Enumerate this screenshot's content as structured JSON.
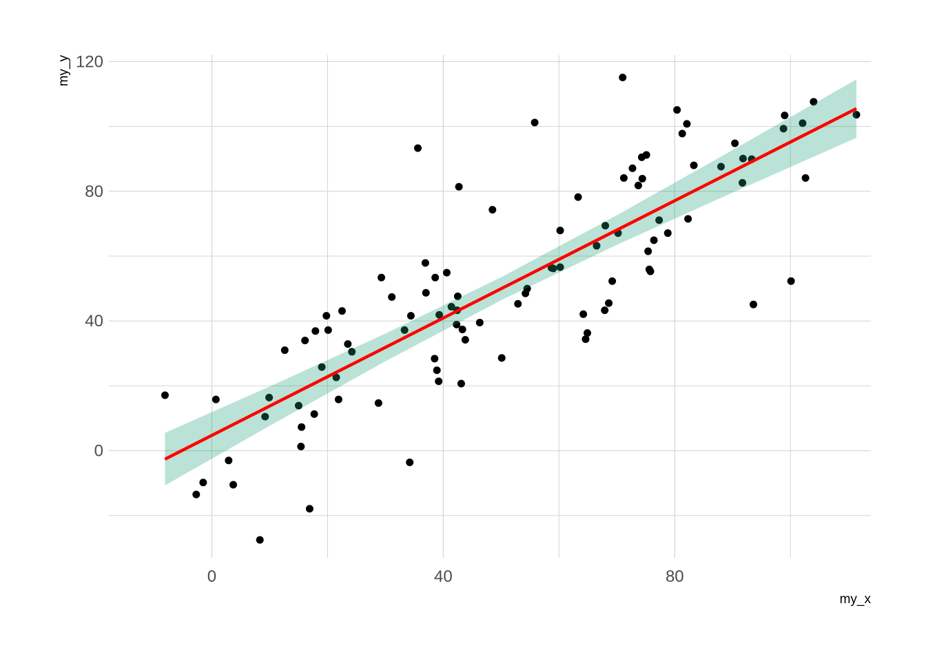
{
  "chart_data": {
    "type": "scatter",
    "title": "",
    "xlabel": "my_x",
    "ylabel": "my_y",
    "xlim": [
      -17.8,
      113.9
    ],
    "ylim": [
      -33,
      122
    ],
    "x_ticks": [
      0,
      40,
      80
    ],
    "y_ticks": [
      0,
      40,
      80,
      120
    ],
    "x_minor_grid": [
      20,
      60,
      100
    ],
    "y_minor_grid": [
      -20,
      20,
      60,
      100
    ],
    "grid": true,
    "colors": {
      "points": "#000000",
      "fit_line": "#ff0000",
      "band": "#1b9e77",
      "grid": "#d4d4d4",
      "tick_text": "#4d4d4d"
    },
    "points": [
      [
        -8.1,
        17.1
      ],
      [
        -2.7,
        -13.5
      ],
      [
        -1.5,
        -9.8
      ],
      [
        0.7,
        15.8
      ],
      [
        2.9,
        -3.0
      ],
      [
        3.7,
        -10.5
      ],
      [
        8.3,
        -27.5
      ],
      [
        9.2,
        10.5
      ],
      [
        9.9,
        16.4
      ],
      [
        12.6,
        31.0
      ],
      [
        15.0,
        13.9
      ],
      [
        15.4,
        1.3
      ],
      [
        15.5,
        7.3
      ],
      [
        16.1,
        34.0
      ],
      [
        16.9,
        -17.9
      ],
      [
        17.7,
        11.3
      ],
      [
        17.9,
        36.9
      ],
      [
        19.0,
        25.8
      ],
      [
        19.8,
        41.6
      ],
      [
        20.1,
        37.2
      ],
      [
        21.5,
        22.6
      ],
      [
        21.9,
        15.8
      ],
      [
        22.5,
        43.1
      ],
      [
        23.5,
        32.9
      ],
      [
        24.2,
        30.5
      ],
      [
        28.8,
        14.7
      ],
      [
        29.3,
        53.4
      ],
      [
        31.1,
        47.4
      ],
      [
        33.3,
        37.2
      ],
      [
        34.2,
        -3.6
      ],
      [
        34.4,
        41.6
      ],
      [
        35.6,
        93.3
      ],
      [
        36.9,
        57.9
      ],
      [
        37.0,
        48.7
      ],
      [
        38.5,
        28.4
      ],
      [
        38.6,
        53.4
      ],
      [
        38.9,
        24.8
      ],
      [
        39.2,
        21.4
      ],
      [
        39.3,
        41.9
      ],
      [
        40.6,
        54.9
      ],
      [
        41.4,
        44.4
      ],
      [
        42.3,
        38.9
      ],
      [
        42.4,
        43.3
      ],
      [
        42.5,
        47.6
      ],
      [
        42.7,
        81.4
      ],
      [
        43.1,
        20.7
      ],
      [
        43.3,
        37.4
      ],
      [
        43.8,
        34.2
      ],
      [
        46.3,
        39.5
      ],
      [
        48.5,
        74.3
      ],
      [
        50.1,
        28.6
      ],
      [
        52.9,
        45.3
      ],
      [
        54.2,
        48.5
      ],
      [
        54.5,
        50.0
      ],
      [
        55.8,
        101.2
      ],
      [
        58.7,
        56.4
      ],
      [
        59.0,
        56.2
      ],
      [
        60.2,
        67.9
      ],
      [
        60.2,
        56.6
      ],
      [
        63.3,
        78.2
      ],
      [
        64.2,
        42.1
      ],
      [
        64.6,
        34.4
      ],
      [
        64.9,
        36.3
      ],
      [
        66.5,
        63.2
      ],
      [
        67.9,
        43.3
      ],
      [
        68.0,
        69.4
      ],
      [
        68.6,
        45.5
      ],
      [
        69.2,
        52.3
      ],
      [
        70.2,
        67.1
      ],
      [
        71.0,
        115.1
      ],
      [
        71.2,
        84.1
      ],
      [
        72.7,
        87.1
      ],
      [
        73.7,
        81.8
      ],
      [
        74.3,
        90.5
      ],
      [
        74.4,
        83.9
      ],
      [
        75.1,
        91.2
      ],
      [
        75.4,
        61.5
      ],
      [
        75.6,
        55.9
      ],
      [
        75.8,
        55.3
      ],
      [
        76.4,
        64.9
      ],
      [
        77.3,
        71.1
      ],
      [
        78.8,
        67.1
      ],
      [
        80.4,
        105.1
      ],
      [
        81.3,
        97.8
      ],
      [
        82.1,
        100.8
      ],
      [
        82.3,
        71.5
      ],
      [
        83.3,
        88.0
      ],
      [
        88.0,
        87.6
      ],
      [
        90.4,
        94.8
      ],
      [
        91.7,
        82.6
      ],
      [
        91.8,
        90.1
      ],
      [
        93.3,
        89.9
      ],
      [
        93.6,
        45.1
      ],
      [
        98.8,
        99.3
      ],
      [
        99.0,
        103.4
      ],
      [
        100.1,
        52.3
      ],
      [
        102.1,
        101.0
      ],
      [
        102.6,
        84.1
      ],
      [
        104.0,
        107.6
      ],
      [
        111.4,
        103.6
      ]
    ],
    "fit_line": {
      "x": [
        -8.1,
        111.4
      ],
      "y": [
        -2.6,
        105.5
      ]
    },
    "confidence_band": {
      "x": [
        -8.1,
        10,
        30,
        50,
        70,
        90,
        111.4
      ],
      "lower": [
        -10.7,
        7.7,
        27.6,
        46.4,
        63.5,
        79.6,
        96.5
      ],
      "upper": [
        5.5,
        19.8,
        36.1,
        53.5,
        72.6,
        92.7,
        114.5
      ]
    }
  }
}
